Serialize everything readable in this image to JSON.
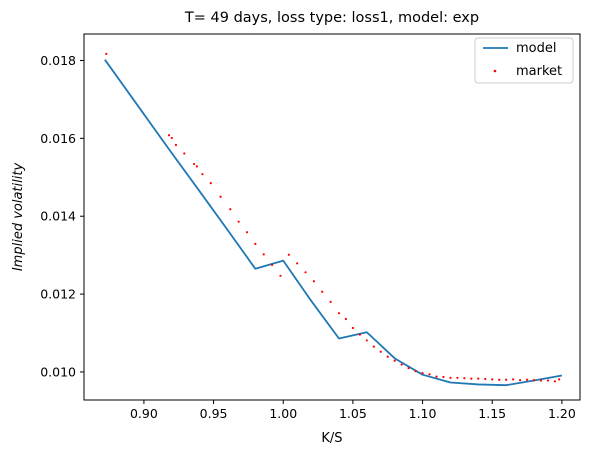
{
  "chart_data": {
    "type": "line",
    "title": "T= 49 days, loss type: loss1, model: exp",
    "xlabel": "K/S",
    "ylabel": "Implied volatility",
    "xlim": [
      0.857,
      1.213
    ],
    "ylim": [
      0.00928,
      0.01868
    ],
    "x_ticks": [
      0.9,
      0.95,
      1.0,
      1.05,
      1.1,
      1.15,
      1.2
    ],
    "x_tick_labels": [
      "0.90",
      "0.95",
      "1.00",
      "1.05",
      "1.10",
      "1.15",
      "1.20"
    ],
    "y_ticks": [
      0.01,
      0.012,
      0.014,
      0.016,
      0.018
    ],
    "y_tick_labels": [
      "0.010",
      "0.012",
      "0.014",
      "0.016",
      "0.018"
    ],
    "grid": false,
    "legend_position": "top-right",
    "series": [
      {
        "name": "model",
        "kind": "line",
        "color": "#1f77b4",
        "x": [
          0.872,
          0.9,
          0.92,
          0.94,
          0.96,
          0.98,
          1.0,
          1.02,
          1.04,
          1.06,
          1.08,
          1.1,
          1.12,
          1.14,
          1.16,
          1.18,
          1.2
        ],
        "y": [
          0.01802,
          0.01662,
          0.01562,
          0.01464,
          0.01365,
          0.01265,
          0.01286,
          0.01183,
          0.01086,
          0.01102,
          0.01035,
          0.00993,
          0.00973,
          0.00968,
          0.00966,
          0.00978,
          0.00991
        ]
      },
      {
        "name": "market",
        "kind": "scatter",
        "color": "#ff0000",
        "x": [
          0.873,
          0.918,
          0.92,
          0.923,
          0.929,
          0.936,
          0.938,
          0.942,
          0.948,
          0.955,
          0.962,
          0.968,
          0.974,
          0.98,
          0.986,
          0.992,
          0.998,
          1.004,
          1.01,
          1.016,
          1.022,
          1.028,
          1.034,
          1.04,
          1.045,
          1.05,
          1.055,
          1.06,
          1.065,
          1.07,
          1.075,
          1.08,
          1.085,
          1.09,
          1.095,
          1.1,
          1.105,
          1.11,
          1.115,
          1.12,
          1.125,
          1.13,
          1.135,
          1.14,
          1.145,
          1.15,
          1.155,
          1.16,
          1.165,
          1.17,
          1.175,
          1.18,
          1.185,
          1.19,
          1.195,
          1.198
        ],
        "y": [
          0.01817,
          0.01608,
          0.01601,
          0.01583,
          0.01561,
          0.01534,
          0.01528,
          0.01508,
          0.01485,
          0.0145,
          0.01418,
          0.01386,
          0.01359,
          0.01329,
          0.01302,
          0.01275,
          0.01247,
          0.01301,
          0.01279,
          0.01256,
          0.01233,
          0.01206,
          0.0118,
          0.01151,
          0.01136,
          0.01113,
          0.01096,
          0.01081,
          0.01065,
          0.01052,
          0.01039,
          0.01029,
          0.01019,
          0.0101,
          0.01002,
          0.00997,
          0.00994,
          0.00988,
          0.00987,
          0.00985,
          0.00985,
          0.00984,
          0.00983,
          0.00983,
          0.00982,
          0.00981,
          0.0098,
          0.0098,
          0.00981,
          0.00979,
          0.0098,
          0.00979,
          0.00978,
          0.00978,
          0.00976,
          0.00981
        ]
      }
    ]
  }
}
